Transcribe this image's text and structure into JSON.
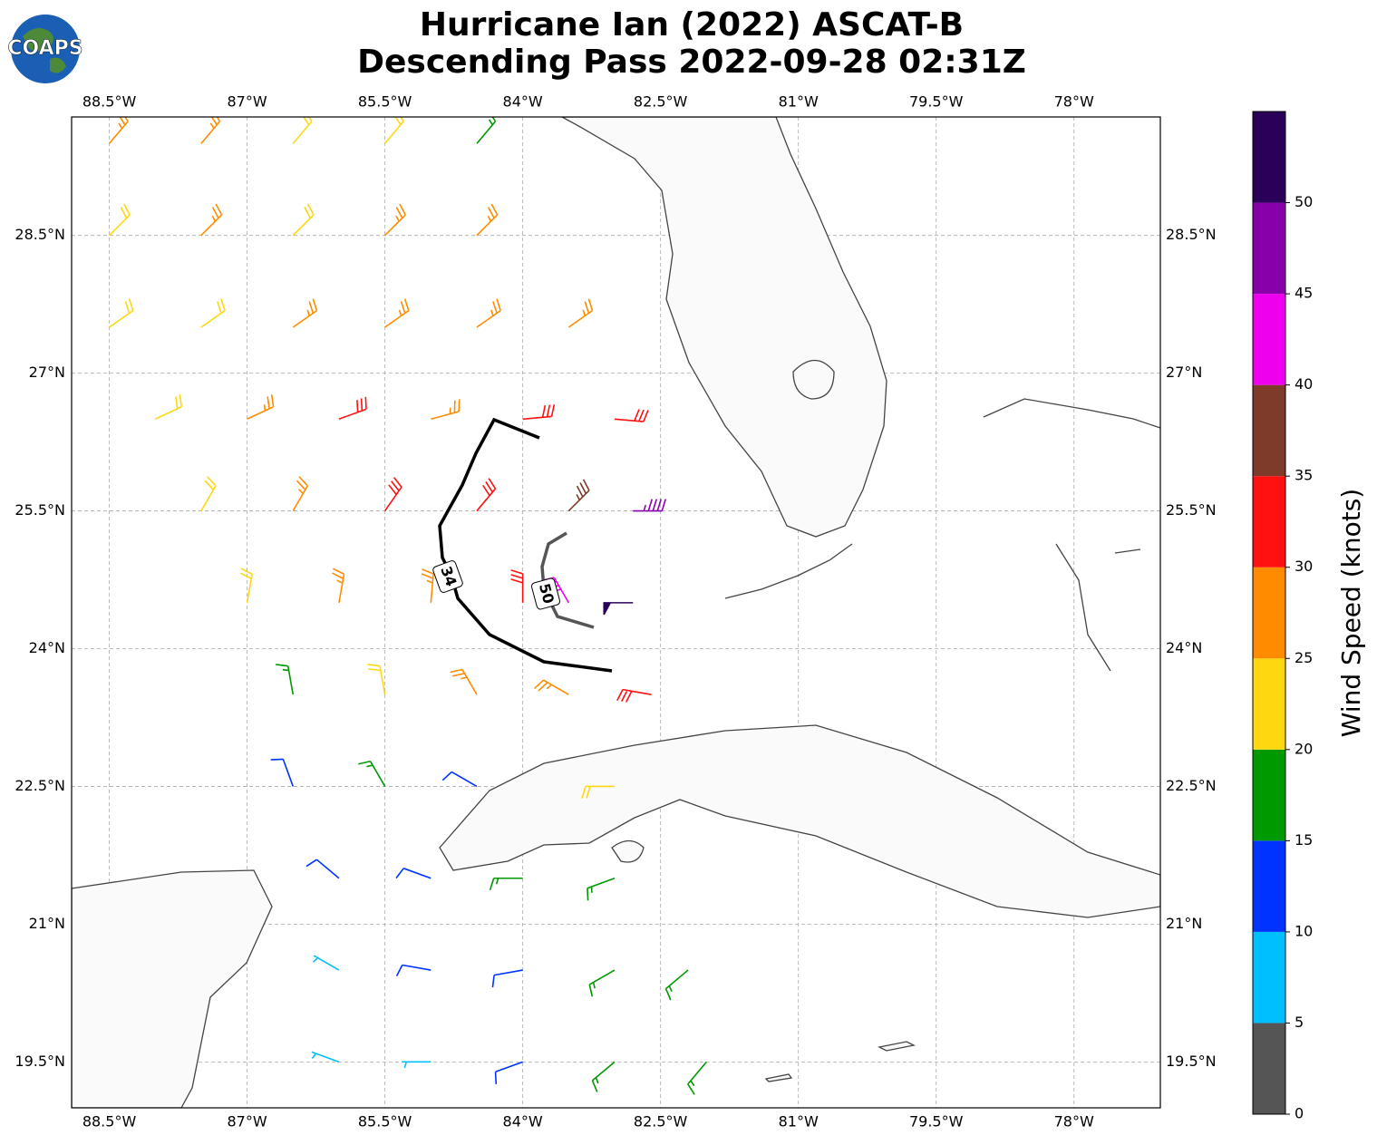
{
  "chart_data": {
    "type": "barb",
    "title": "Hurricane Ian (2022) ASCAT-B",
    "subtitle": "Descending Pass 2022-09-28 02:31Z",
    "logo": "COAPS",
    "xlim": [
      -88.91,
      -77.06
    ],
    "ylim": [
      19.0,
      29.79
    ],
    "xticks": [
      {
        "value": -88.5,
        "label": "88.5°W"
      },
      {
        "value": -87,
        "label": "87°W"
      },
      {
        "value": -85.5,
        "label": "85.5°W"
      },
      {
        "value": -84,
        "label": "84°W"
      },
      {
        "value": -82.5,
        "label": "82.5°W"
      },
      {
        "value": -81,
        "label": "81°W"
      },
      {
        "value": -79.5,
        "label": "79.5°W"
      },
      {
        "value": -78,
        "label": "78°W"
      }
    ],
    "yticks": [
      {
        "value": 19.5,
        "label": "19.5°N"
      },
      {
        "value": 21,
        "label": "21°N"
      },
      {
        "value": 22.5,
        "label": "22.5°N"
      },
      {
        "value": 24,
        "label": "24°N"
      },
      {
        "value": 25.5,
        "label": "25.5°N"
      },
      {
        "value": 27,
        "label": "27°N"
      },
      {
        "value": 28.5,
        "label": "28.5°N"
      }
    ],
    "grid": true,
    "contour_labels": [
      34,
      50
    ],
    "colorbar": {
      "label": "Wind Speed (knots)",
      "clim": [
        0,
        55
      ],
      "ticks": [
        0,
        5,
        10,
        15,
        20,
        25,
        30,
        35,
        40,
        45,
        50
      ],
      "colors": [
        "#555555",
        "#00bfff",
        "#0033ff",
        "#009900",
        "#ffd711",
        "#ff8c00",
        "#ff1111",
        "#7f3b2a",
        "#ee00ee",
        "#8800aa",
        "#2a0059"
      ]
    },
    "barbs": {
      "lon": [
        -88.5,
        -87.5,
        -86.5,
        -85.5,
        -84.5,
        -88.5,
        -87.5,
        -86.5,
        -85.5,
        -84.5,
        -88.5,
        -87.5,
        -86.5,
        -85.5,
        -84.5,
        -83.5,
        -88,
        -87,
        -86,
        -85,
        -84,
        -83,
        -87.5,
        -86.5,
        -85.5,
        -84.5,
        -83.5,
        -82.8,
        -87,
        -86,
        -85,
        -84,
        -83.5,
        -82.8,
        -86.5,
        -85.5,
        -84.5,
        -83.5,
        -82.6,
        -86.5,
        -85.5,
        -84.5,
        -83,
        -86,
        -85,
        -84,
        -83,
        -86,
        -85,
        -84,
        -83,
        -82.2,
        -86,
        -85,
        -84,
        -83,
        -82
      ],
      "lat": [
        29.5,
        29.5,
        29.5,
        29.5,
        29.5,
        28.5,
        28.5,
        28.5,
        28.5,
        28.5,
        27.5,
        27.5,
        27.5,
        27.5,
        27.5,
        27.5,
        26.5,
        26.5,
        26.5,
        26.5,
        26.5,
        26.5,
        25.5,
        25.5,
        25.5,
        25.5,
        25.5,
        25.5,
        24.5,
        24.5,
        24.5,
        24.5,
        24.5,
        24.5,
        23.5,
        23.5,
        23.5,
        23.5,
        23.5,
        22.5,
        22.5,
        22.5,
        22.5,
        21.5,
        21.5,
        21.5,
        21.5,
        20.5,
        20.5,
        20.5,
        20.5,
        20.5,
        19.5,
        19.5,
        19.5,
        19.5,
        19.5
      ],
      "speed": [
        27,
        27,
        22,
        22,
        18,
        22,
        27,
        22,
        27,
        27,
        22,
        22,
        27,
        27,
        27,
        27,
        22,
        27,
        32,
        27,
        32,
        32,
        22,
        27,
        32,
        32,
        37,
        47,
        22,
        27,
        27,
        32,
        42,
        52,
        17,
        22,
        27,
        27,
        32,
        12,
        17,
        12,
        22,
        12,
        12,
        17,
        17,
        7,
        12,
        12,
        17,
        17,
        7,
        7,
        12,
        17,
        17
      ],
      "dir": [
        40,
        40,
        40,
        40,
        40,
        45,
        45,
        45,
        45,
        45,
        55,
        55,
        55,
        55,
        55,
        55,
        65,
        65,
        70,
        75,
        85,
        95,
        30,
        30,
        35,
        40,
        45,
        90,
        10,
        10,
        5,
        0,
        330,
        270,
        350,
        350,
        330,
        300,
        280,
        340,
        330,
        300,
        270,
        310,
        290,
        270,
        250,
        300,
        280,
        260,
        240,
        230,
        290,
        270,
        250,
        230,
        220
      ]
    }
  }
}
